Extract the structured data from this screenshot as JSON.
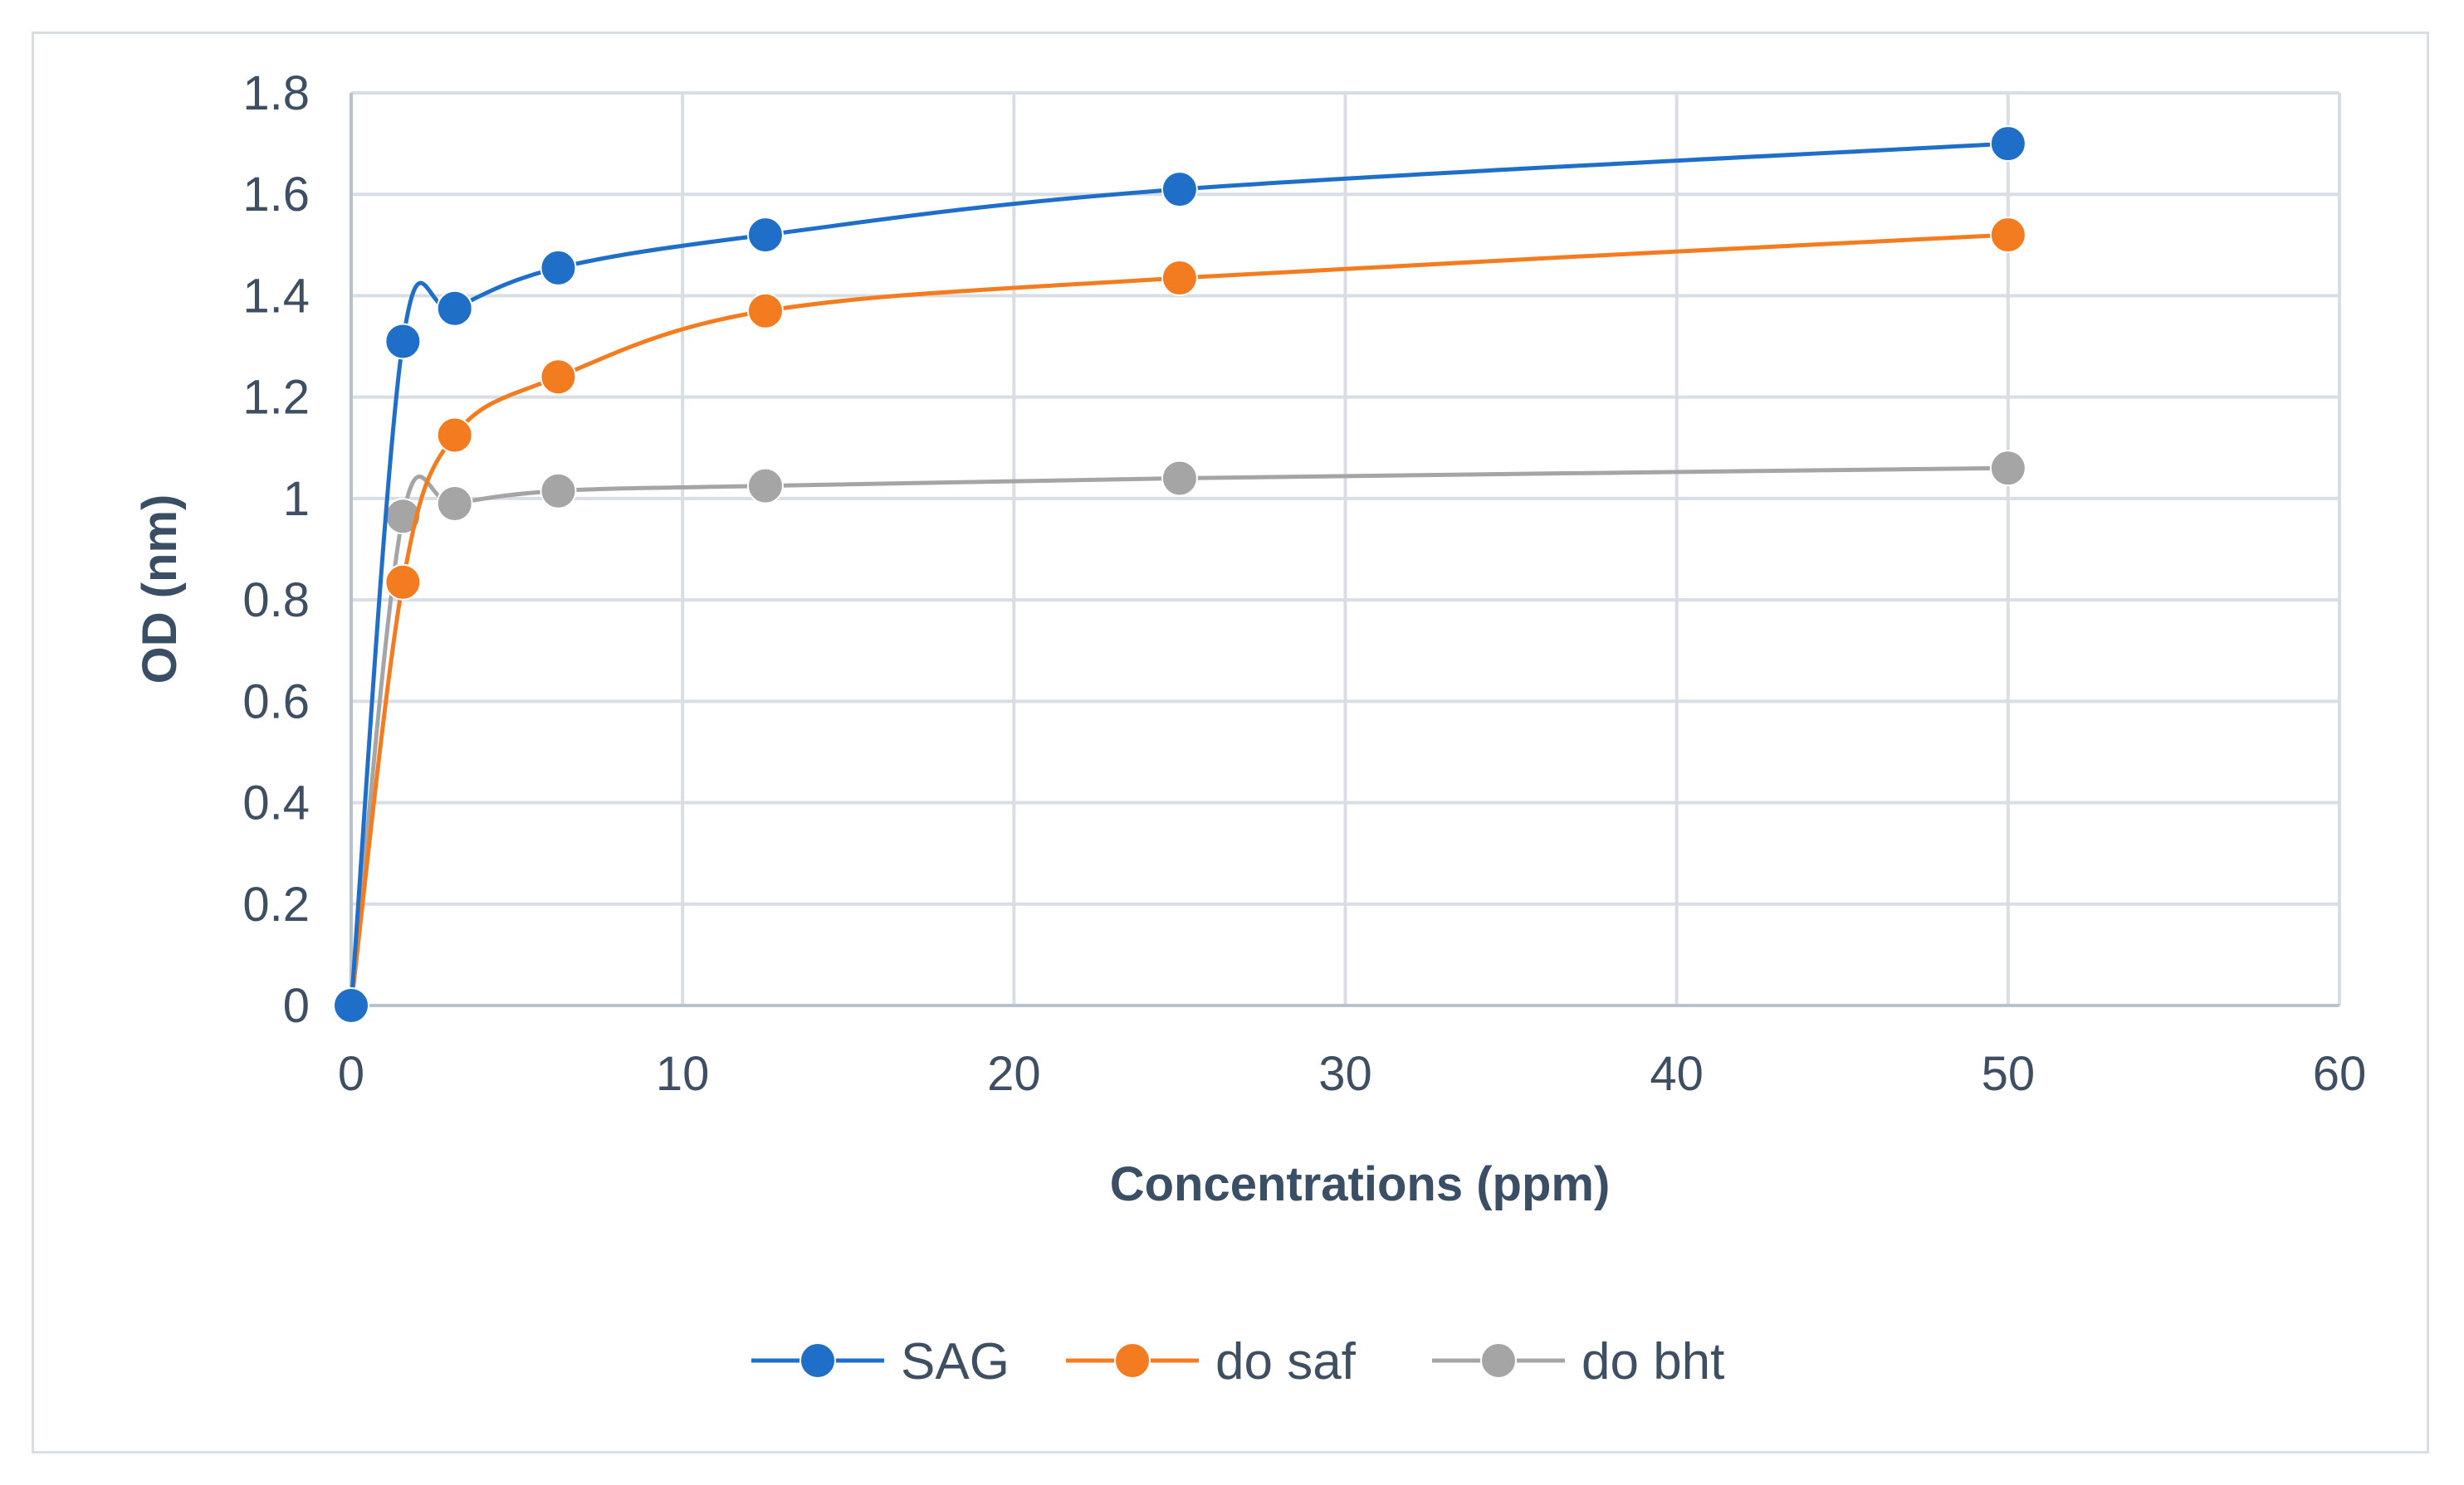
{
  "chart_data": {
    "type": "line",
    "title": "",
    "xlabel": "Concentrations (ppm)",
    "ylabel": "OD (nm)",
    "xlim": [
      0,
      60
    ],
    "ylim": [
      0,
      1.8
    ],
    "xticks": [
      "0",
      "10",
      "20",
      "30",
      "40",
      "50",
      "60"
    ],
    "yticks": [
      "0",
      "0.2",
      "0.4",
      "0.6",
      "0.8",
      "1",
      "1.2",
      "1.4",
      "1.6",
      "1.8"
    ],
    "grid": true,
    "legend_position": "bottom",
    "x": [
      0,
      1.5625,
      3.125,
      6.25,
      12.5,
      25,
      50
    ],
    "series": [
      {
        "name": "SAG",
        "color": "#1f6fc9",
        "values": [
          0,
          1.31,
          1.375,
          1.455,
          1.52,
          1.61,
          1.7
        ]
      },
      {
        "name": "do saf",
        "color": "#f47c20",
        "values": [
          0,
          0.835,
          1.125,
          1.24,
          1.37,
          1.435,
          1.52
        ]
      },
      {
        "name": "do bht",
        "color": "#a5a5a5",
        "values": [
          0,
          0.965,
          0.99,
          1.015,
          1.025,
          1.04,
          1.06
        ]
      }
    ]
  }
}
